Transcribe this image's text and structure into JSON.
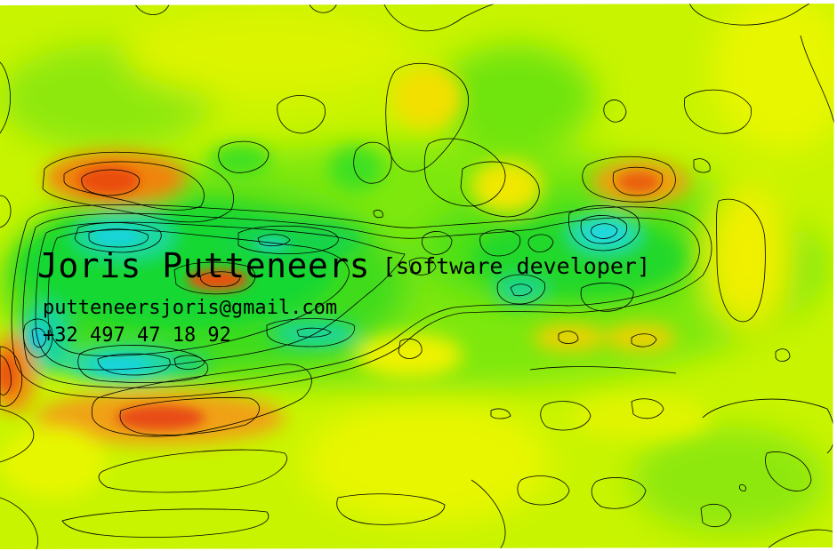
{
  "card": {
    "name": "Joris Putteneers",
    "role": "[software developer]",
    "email": "putteneersjoris@gmail.com",
    "phone": "+32 497 47 18 92"
  },
  "colors": {
    "base": "#c8f400",
    "green": "#33e018",
    "deep_green": "#10d43a",
    "cyan": "#22dcc0",
    "yellow": "#eef800",
    "orange": "#f29a10",
    "red": "#ee5a12",
    "contour": "#000000"
  }
}
